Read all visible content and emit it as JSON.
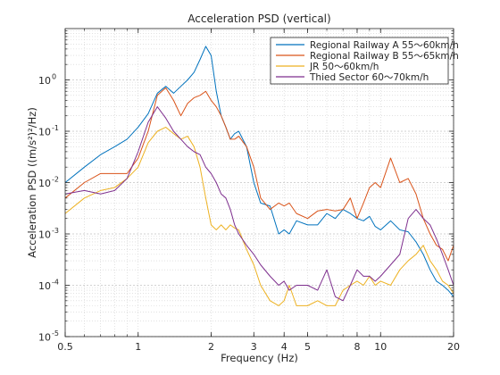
{
  "chart_data": {
    "type": "line",
    "title": "Acceleration PSD (vertical)",
    "xlabel": "Frequency (Hz)",
    "ylabel": "Acceleration PSD ((m/s²)²/Hz)",
    "x_scale": "log",
    "y_scale": "log",
    "xlim": [
      0.5,
      20
    ],
    "ylim": [
      1e-05,
      10
    ],
    "x_ticks": [
      0.5,
      1,
      2,
      3,
      4,
      5,
      8,
      10,
      20
    ],
    "x_tick_labels": [
      "0.5",
      "1",
      "2",
      "3",
      "4",
      "5",
      "8",
      "10",
      "20"
    ],
    "y_ticks": [
      1e-05,
      0.0001,
      0.001,
      0.01,
      0.1,
      1
    ],
    "y_tick_labels": [
      "10",
      "10",
      "10",
      "10",
      "10",
      "10"
    ],
    "y_tick_exponents": [
      "-5",
      "-4",
      "-3",
      "-2",
      "-1",
      "0"
    ],
    "grid": true,
    "minor_grid": true,
    "legend_position": "top-right",
    "series": [
      {
        "name": "Regional Railway A 55〜60km/h",
        "color": "#0072BD",
        "x": [
          0.5,
          0.6,
          0.7,
          0.8,
          0.9,
          1.0,
          1.1,
          1.2,
          1.3,
          1.4,
          1.5,
          1.6,
          1.7,
          1.8,
          1.9,
          2.0,
          2.1,
          2.2,
          2.3,
          2.4,
          2.5,
          2.6,
          2.8,
          3.0,
          3.2,
          3.5,
          3.8,
          4.0,
          4.2,
          4.5,
          5.0,
          5.5,
          6.0,
          6.5,
          7.0,
          7.5,
          8.0,
          8.5,
          9.0,
          9.5,
          10.0,
          11.0,
          12.0,
          13.0,
          14.0,
          15.0,
          16.0,
          17.0,
          18.0,
          19.0,
          20.0
        ],
        "y": [
          0.01,
          0.02,
          0.035,
          0.05,
          0.07,
          0.12,
          0.22,
          0.55,
          0.75,
          0.55,
          0.75,
          1.0,
          1.4,
          2.5,
          4.5,
          3.0,
          0.6,
          0.2,
          0.12,
          0.07,
          0.09,
          0.1,
          0.05,
          0.01,
          0.004,
          0.0035,
          0.001,
          0.0012,
          0.001,
          0.0018,
          0.0015,
          0.0015,
          0.0025,
          0.002,
          0.003,
          0.0025,
          0.002,
          0.0018,
          0.0022,
          0.0014,
          0.0012,
          0.0018,
          0.0012,
          0.0011,
          0.0007,
          0.0004,
          0.0002,
          0.00012,
          0.0001,
          8e-05,
          6e-05
        ]
      },
      {
        "name": "Regional Railway B 55〜65km/h",
        "color": "#D95319",
        "x": [
          0.5,
          0.6,
          0.7,
          0.8,
          0.9,
          1.0,
          1.1,
          1.2,
          1.3,
          1.4,
          1.5,
          1.6,
          1.7,
          1.8,
          1.9,
          2.0,
          2.1,
          2.2,
          2.3,
          2.4,
          2.5,
          2.6,
          2.8,
          3.0,
          3.2,
          3.5,
          3.8,
          4.0,
          4.2,
          4.5,
          5.0,
          5.5,
          6.0,
          6.5,
          7.0,
          7.5,
          8.0,
          8.5,
          9.0,
          9.5,
          10.0,
          11.0,
          12.0,
          13.0,
          14.0,
          15.0,
          16.0,
          17.0,
          18.0,
          19.0,
          20.0
        ],
        "y": [
          0.005,
          0.01,
          0.015,
          0.015,
          0.015,
          0.03,
          0.1,
          0.5,
          0.7,
          0.4,
          0.2,
          0.35,
          0.45,
          0.5,
          0.6,
          0.4,
          0.3,
          0.2,
          0.12,
          0.07,
          0.07,
          0.08,
          0.05,
          0.02,
          0.005,
          0.003,
          0.004,
          0.0035,
          0.004,
          0.0025,
          0.002,
          0.0028,
          0.003,
          0.0028,
          0.003,
          0.005,
          0.002,
          0.004,
          0.008,
          0.01,
          0.008,
          0.03,
          0.01,
          0.012,
          0.006,
          0.002,
          0.001,
          0.0006,
          0.0005,
          0.0003,
          0.0006
        ]
      },
      {
        "name": "JR 50〜60km/h",
        "color": "#EDB120",
        "x": [
          0.5,
          0.6,
          0.7,
          0.8,
          0.9,
          1.0,
          1.1,
          1.2,
          1.3,
          1.4,
          1.5,
          1.6,
          1.7,
          1.8,
          1.9,
          2.0,
          2.1,
          2.2,
          2.3,
          2.4,
          2.5,
          2.6,
          2.8,
          3.0,
          3.2,
          3.5,
          3.8,
          4.0,
          4.2,
          4.5,
          5.0,
          5.5,
          6.0,
          6.5,
          7.0,
          7.5,
          8.0,
          8.5,
          9.0,
          9.5,
          10.0,
          11.0,
          12.0,
          13.0,
          14.0,
          15.0,
          16.0,
          17.0,
          18.0,
          19.0,
          20.0
        ],
        "y": [
          0.0025,
          0.005,
          0.007,
          0.008,
          0.012,
          0.02,
          0.06,
          0.1,
          0.12,
          0.09,
          0.07,
          0.08,
          0.05,
          0.02,
          0.005,
          0.0015,
          0.0012,
          0.0015,
          0.0012,
          0.0015,
          0.0013,
          0.0012,
          0.0005,
          0.00025,
          0.0001,
          5e-05,
          4e-05,
          5e-05,
          0.0001,
          4e-05,
          4e-05,
          5e-05,
          4e-05,
          4e-05,
          8e-05,
          0.0001,
          0.00012,
          0.0001,
          0.00015,
          0.0001,
          0.00012,
          0.0001,
          0.0002,
          0.0003,
          0.0004,
          0.0006,
          0.0003,
          0.0002,
          0.00012,
          0.0001,
          7e-05
        ]
      },
      {
        "name": "Thied Sector 60〜70km/h",
        "color": "#7E2F8E",
        "x": [
          0.5,
          0.6,
          0.7,
          0.8,
          0.9,
          1.0,
          1.1,
          1.2,
          1.3,
          1.4,
          1.5,
          1.6,
          1.7,
          1.8,
          1.9,
          2.0,
          2.1,
          2.2,
          2.3,
          2.4,
          2.5,
          2.6,
          2.8,
          3.0,
          3.2,
          3.5,
          3.8,
          4.0,
          4.2,
          4.5,
          5.0,
          5.5,
          6.0,
          6.5,
          7.0,
          7.5,
          8.0,
          8.5,
          9.0,
          9.5,
          10.0,
          11.0,
          12.0,
          13.0,
          14.0,
          15.0,
          16.0,
          17.0,
          18.0,
          19.0,
          20.0
        ],
        "y": [
          0.006,
          0.007,
          0.006,
          0.007,
          0.012,
          0.04,
          0.15,
          0.3,
          0.18,
          0.1,
          0.07,
          0.05,
          0.04,
          0.035,
          0.02,
          0.015,
          0.01,
          0.006,
          0.005,
          0.003,
          0.0015,
          0.001,
          0.0006,
          0.0004,
          0.00025,
          0.00015,
          0.0001,
          0.00012,
          8e-05,
          0.0001,
          0.0001,
          8e-05,
          0.0002,
          6e-05,
          5e-05,
          0.0001,
          0.0002,
          0.00015,
          0.00015,
          0.00012,
          0.00015,
          0.00025,
          0.0004,
          0.002,
          0.003,
          0.002,
          0.0015,
          0.0008,
          0.0004,
          0.0002,
          0.0001
        ]
      }
    ]
  }
}
